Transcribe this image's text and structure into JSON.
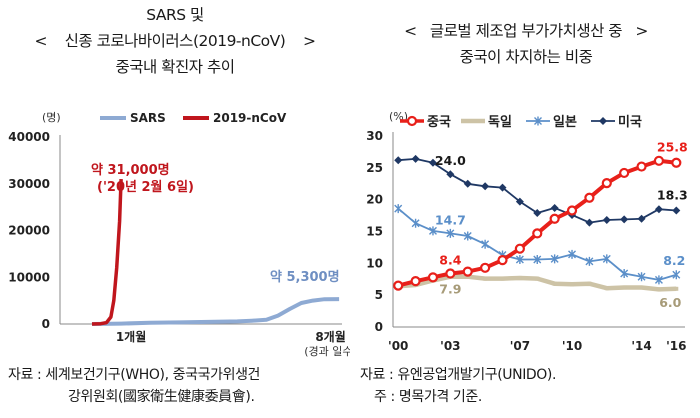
{
  "left_title": {
    "line1": "SARS 및",
    "bracket_open": "<",
    "line2": "신종 코로나바이러스(2019-nCoV)",
    "bracket_close": ">",
    "line3": "중국내 확진자 추이"
  },
  "right_title": {
    "bracket_open": "<",
    "line1": "글로벌 제조업 부가가치생산 중",
    "bracket_close": ">",
    "line2": "중국이 차지하는 비중"
  },
  "left_source": {
    "line1": "자료 :  세계보건기구(WHO),  중국국가위생건",
    "line2": "강위원회(國家衛生健康委員會)."
  },
  "right_source": {
    "line1": "자료 :  유엔공업개발기구(UNIDO).",
    "line2": "주 :  명목가격 기준."
  },
  "colors": {
    "sars": "#8eaad3",
    "ncov": "#c0161d",
    "china": "#e8201a",
    "germany": "#cdc3a6",
    "japan": "#5b8fc9",
    "usa": "#1f3864"
  },
  "chart_data": [
    {
      "type": "line",
      "title": "SARS 및 신종 코로나바이러스(2019-nCoV) 중국내 확진자 추이",
      "ylabel": "(명)",
      "xlabel": "(경과 일수)",
      "ylim": [
        0,
        40000
      ],
      "yticks": [
        "0",
        "10000",
        "20000",
        "30000",
        "40000"
      ],
      "ytick_values": [
        0,
        10000,
        20000,
        30000,
        40000
      ],
      "x_domain_months": [
        -1.1,
        8.6
      ],
      "xtick_labels": [
        {
          "label": "1개월",
          "month": 1
        },
        {
          "label": "8개월",
          "month": 8
        }
      ],
      "legend": [
        "SARS",
        "2019-nCoV"
      ],
      "legend_position": "top",
      "series": [
        {
          "name": "SARS",
          "x_months": [
            0,
            1,
            2,
            3,
            4,
            5,
            5.5,
            6,
            6.4,
            6.8,
            7.2,
            7.6,
            8,
            8.5
          ],
          "values": [
            0,
            80,
            250,
            350,
            450,
            550,
            700,
            900,
            1800,
            3200,
            4500,
            5000,
            5300,
            5330
          ]
        },
        {
          "name": "2019-nCoV",
          "x_months": [
            0,
            0.3,
            0.5,
            0.65,
            0.75,
            0.85,
            0.95,
            1.0
          ],
          "values": [
            0,
            60,
            300,
            1500,
            5000,
            12000,
            22000,
            31000
          ]
        }
      ],
      "annotations": [
        {
          "text": "약 31,000명",
          "series": "2019-nCoV"
        },
        {
          "text": "('20년 2월 6일)",
          "series": "2019-nCoV"
        },
        {
          "text": "약 5,300명",
          "series": "SARS"
        }
      ]
    },
    {
      "type": "line",
      "title": "글로벌 제조업 부가가치생산 중 중국이 차지하는 비중",
      "ylabel": "(%)",
      "ylim": [
        0,
        30
      ],
      "yticks": [
        "0",
        "5",
        "10",
        "15",
        "20",
        "25",
        "30"
      ],
      "ytick_values": [
        0,
        5,
        10,
        15,
        20,
        25,
        30
      ],
      "x": [
        2000,
        2001,
        2002,
        2003,
        2004,
        2005,
        2006,
        2007,
        2008,
        2009,
        2010,
        2011,
        2012,
        2013,
        2014,
        2015,
        2016
      ],
      "xticks": [
        {
          "label": "'00",
          "year": 2000
        },
        {
          "label": "'03",
          "year": 2003
        },
        {
          "label": "'07",
          "year": 2007
        },
        {
          "label": "'10",
          "year": 2010
        },
        {
          "label": "'14",
          "year": 2014
        },
        {
          "label": "'16",
          "year": 2016
        }
      ],
      "legend": [
        "중국",
        "독일",
        "일본",
        "미국"
      ],
      "legend_position": "top",
      "series": [
        {
          "name": "중국",
          "values": [
            6.5,
            7.2,
            7.8,
            8.4,
            8.7,
            9.3,
            10.5,
            12.3,
            14.7,
            17.0,
            18.3,
            20.3,
            22.6,
            24.2,
            25.2,
            26.1,
            25.8
          ]
        },
        {
          "name": "독일",
          "values": [
            6.4,
            6.6,
            7.3,
            7.9,
            7.9,
            7.6,
            7.6,
            7.7,
            7.6,
            6.8,
            6.7,
            6.8,
            6.1,
            6.2,
            6.2,
            5.9,
            6.0
          ]
        },
        {
          "name": "일본",
          "values": [
            18.6,
            16.3,
            15.1,
            14.7,
            14.3,
            13.0,
            11.3,
            10.6,
            10.6,
            10.7,
            11.4,
            10.3,
            10.7,
            8.4,
            7.9,
            7.4,
            8.2
          ]
        },
        {
          "name": "미국",
          "values": [
            26.2,
            26.4,
            25.8,
            24.0,
            22.5,
            22.1,
            21.9,
            19.7,
            17.9,
            18.7,
            17.6,
            16.4,
            16.8,
            16.9,
            17.0,
            18.5,
            18.3
          ]
        }
      ],
      "data_labels": [
        {
          "text": "24.0",
          "series": "미국",
          "year": 2003
        },
        {
          "text": "14.7",
          "series": "일본",
          "year": 2003
        },
        {
          "text": "8.4",
          "series": "중국",
          "year": 2003
        },
        {
          "text": "7.9",
          "series": "독일",
          "year": 2003
        },
        {
          "text": "25.8",
          "series": "중국",
          "year": 2016
        },
        {
          "text": "18.3",
          "series": "미국",
          "year": 2016
        },
        {
          "text": "8.2",
          "series": "일본",
          "year": 2016
        },
        {
          "text": "6.0",
          "series": "독일",
          "year": 2016
        }
      ]
    }
  ]
}
